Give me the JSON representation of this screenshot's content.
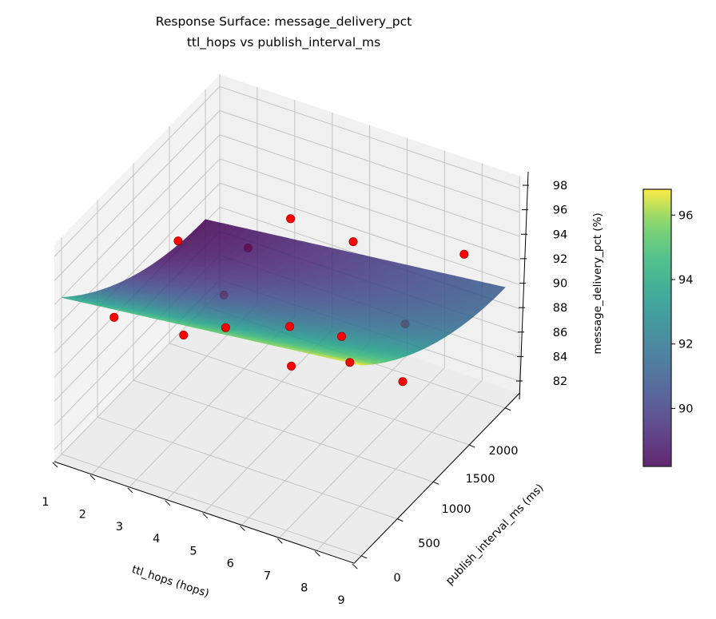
{
  "chart_data": {
    "type": "surface3d",
    "title": [
      "Response Surface: message_delivery_pct",
      "ttl_hops vs publish_interval_ms"
    ],
    "xlabel": "ttl_hops (hops)",
    "ylabel": "publish_interval_ms (ms)",
    "zlabel": "message_delivery_pct (%)",
    "xticks": [
      "1",
      "2",
      "3",
      "4",
      "5",
      "6",
      "7",
      "8",
      "9"
    ],
    "yticks": [
      "0",
      "500",
      "1000",
      "1500",
      "2000"
    ],
    "zticks": [
      "82",
      "84",
      "86",
      "88",
      "90",
      "92",
      "94",
      "96",
      "98"
    ],
    "colorbar": {
      "ticks": [
        "90",
        "92",
        "94",
        "96"
      ],
      "range": [
        88.2,
        96.8
      ],
      "colormap": "viridis"
    },
    "xlim": [
      1,
      9
    ],
    "ylim": [
      -100,
      2200
    ],
    "zlim": [
      81,
      99
    ],
    "grid": true,
    "surface": {
      "x_range": [
        1,
        9
      ],
      "y_range": [
        0,
        2000
      ],
      "colormap": "viridis",
      "alpha": 0.85
    },
    "points_color": "#ff0000",
    "points": [
      {
        "x": 2.0,
        "y": 1100,
        "z": 93
      },
      {
        "x": 5.0,
        "y": 1100,
        "z": 98
      },
      {
        "x": 6.0,
        "y": 1450,
        "z": 95
      },
      {
        "x": 8.0,
        "y": 1950,
        "z": 93
      },
      {
        "x": 2.6,
        "y": 1760,
        "z": 89,
        "behind_surface": true
      },
      {
        "x": 2.8,
        "y": 1320,
        "z": 88,
        "behind_surface": true
      },
      {
        "x": 1.5,
        "y": 470,
        "z": 90
      },
      {
        "x": 2.3,
        "y": 1020,
        "z": 86
      },
      {
        "x": 3.0,
        "y": 1240,
        "z": 86
      },
      {
        "x": 4.5,
        "y": 1350,
        "z": 87
      },
      {
        "x": 5.5,
        "y": 1550,
        "z": 86
      },
      {
        "x": 7.0,
        "y": 1650,
        "z": 88,
        "behind_surface": true
      },
      {
        "x": 4.6,
        "y": 1320,
        "z": 84
      },
      {
        "x": 5.7,
        "y": 1560,
        "z": 84
      },
      {
        "x": 6.9,
        "y": 1670,
        "z": 83
      }
    ]
  }
}
